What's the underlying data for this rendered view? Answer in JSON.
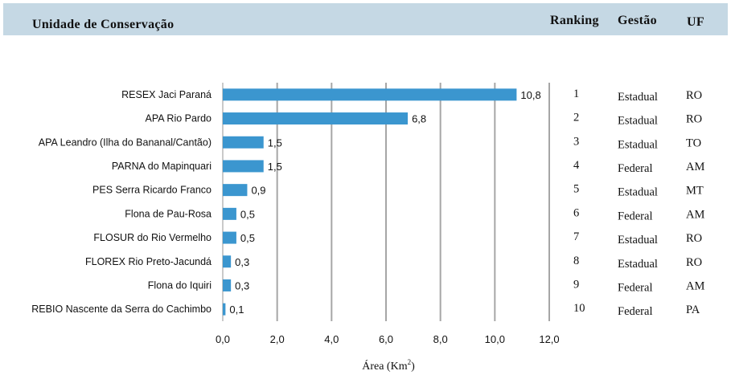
{
  "header": {
    "title": "Unidade de Conservação",
    "ranking": "Ranking",
    "gestao": "Gestão",
    "uf": "UF"
  },
  "colors": {
    "bar": "#3b96cf",
    "grid": "#a6a6a6",
    "header_bg": "#c5d8e4"
  },
  "chart_data": {
    "type": "bar",
    "orientation": "horizontal",
    "categories": [
      "RESEX Jaci Paraná",
      "APA Rio Pardo",
      "APA Leandro (Ilha do Bananal/Cantão)",
      "PARNA do Mapinquari",
      "PES Serra Ricardo Franco",
      "Flona de Pau-Rosa",
      "FLOSUR do Rio Vermelho",
      "FLOREX Rio Preto-Jacundá",
      "Flona do Iquiri",
      "REBIO Nascente da Serra do Cachimbo"
    ],
    "values": [
      10.8,
      6.8,
      1.5,
      1.5,
      0.9,
      0.5,
      0.5,
      0.3,
      0.3,
      0.1
    ],
    "value_labels": [
      "10,8",
      "6,8",
      "1,5",
      "1,5",
      "0,9",
      "0,5",
      "0,5",
      "0,3",
      "0,3",
      "0,1"
    ],
    "xlim": [
      0,
      12
    ],
    "xticks": [
      0,
      2,
      4,
      6,
      8,
      10,
      12
    ],
    "xtick_labels": [
      "0,0",
      "2,0",
      "4,0",
      "6,0",
      "8,0",
      "10,0",
      "12,0"
    ],
    "xlabel_main": "Área (Km",
    "xlabel_sup": "2",
    "xlabel_end": ")",
    "grid": true
  },
  "table": {
    "rows": [
      {
        "ranking": "1",
        "gestao": "Estadual",
        "uf": "RO"
      },
      {
        "ranking": "2",
        "gestao": "Estadual",
        "uf": "RO"
      },
      {
        "ranking": "3",
        "gestao": "Estadual",
        "uf": "TO"
      },
      {
        "ranking": "4",
        "gestao": "Federal",
        "uf": "AM"
      },
      {
        "ranking": "5",
        "gestao": "Estadual",
        "uf": "MT"
      },
      {
        "ranking": "6",
        "gestao": "Federal",
        "uf": "AM"
      },
      {
        "ranking": "7",
        "gestao": "Estadual",
        "uf": "RO"
      },
      {
        "ranking": "8",
        "gestao": "Estadual",
        "uf": "RO"
      },
      {
        "ranking": "9",
        "gestao": "Federal",
        "uf": "AM"
      },
      {
        "ranking": "10",
        "gestao": "Federal",
        "uf": "PA"
      }
    ]
  }
}
